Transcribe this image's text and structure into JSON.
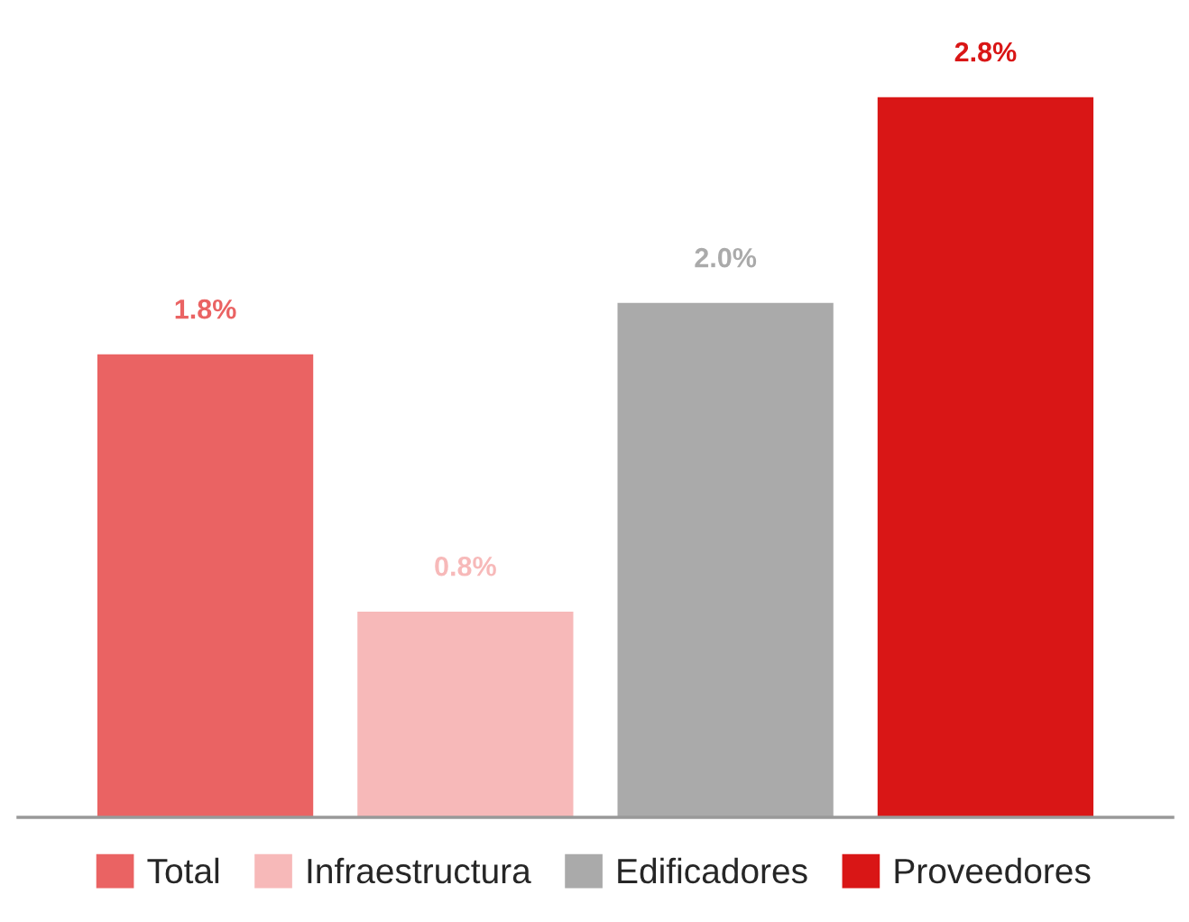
{
  "chart_data": {
    "type": "bar",
    "categories": [
      null,
      null,
      null,
      null
    ],
    "series": [
      {
        "name": "Total",
        "color": "#ea6363",
        "values": [
          1.8,
          null,
          null,
          null
        ],
        "value_labels": [
          "1.8%",
          null,
          null,
          null
        ]
      },
      {
        "name": "Infraestructura",
        "color": "#f7b9b9",
        "values": [
          null,
          0.8,
          null,
          null
        ],
        "value_labels": [
          null,
          "0.8%",
          null,
          null
        ]
      },
      {
        "name": "Edificadores",
        "color": "#aaaaaa",
        "values": [
          null,
          null,
          2.0,
          null
        ],
        "value_labels": [
          null,
          null,
          "2.0%",
          null
        ]
      },
      {
        "name": "Proveedores",
        "color": "#d91616",
        "values": [
          null,
          null,
          null,
          2.8
        ],
        "value_labels": [
          null,
          null,
          null,
          "2.8%"
        ]
      }
    ],
    "stacked": true,
    "tick_labels": false,
    "grid": false,
    "legend": "bottom"
  }
}
